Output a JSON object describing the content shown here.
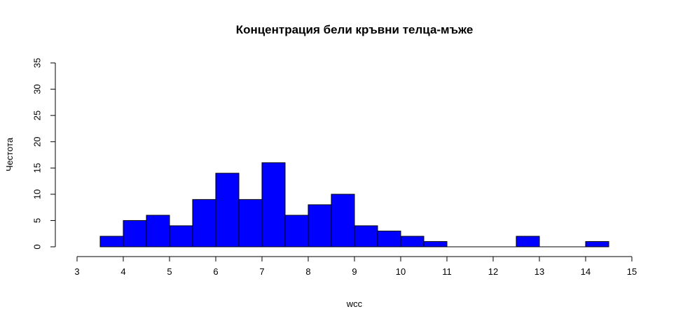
{
  "chart_data": {
    "type": "bar",
    "title": "Концентрация бели кръвни телца-мъже",
    "xlabel": "wcc",
    "ylabel": "Честота",
    "bin_width": 0.5,
    "bins": [
      {
        "start": 3.5,
        "end": 4.0,
        "count": 2
      },
      {
        "start": 4.0,
        "end": 4.5,
        "count": 5
      },
      {
        "start": 4.5,
        "end": 5.0,
        "count": 6
      },
      {
        "start": 5.0,
        "end": 5.5,
        "count": 4
      },
      {
        "start": 5.5,
        "end": 6.0,
        "count": 9
      },
      {
        "start": 6.0,
        "end": 6.5,
        "count": 14
      },
      {
        "start": 6.5,
        "end": 7.0,
        "count": 9
      },
      {
        "start": 7.0,
        "end": 7.5,
        "count": 16
      },
      {
        "start": 7.5,
        "end": 8.0,
        "count": 6
      },
      {
        "start": 8.0,
        "end": 8.5,
        "count": 8
      },
      {
        "start": 8.5,
        "end": 9.0,
        "count": 10
      },
      {
        "start": 9.0,
        "end": 9.5,
        "count": 4
      },
      {
        "start": 9.5,
        "end": 10.0,
        "count": 3
      },
      {
        "start": 10.0,
        "end": 10.5,
        "count": 2
      },
      {
        "start": 10.5,
        "end": 11.0,
        "count": 1
      },
      {
        "start": 11.0,
        "end": 11.5,
        "count": 0
      },
      {
        "start": 11.5,
        "end": 12.0,
        "count": 0
      },
      {
        "start": 12.0,
        "end": 12.5,
        "count": 0
      },
      {
        "start": 12.5,
        "end": 13.0,
        "count": 2
      },
      {
        "start": 13.0,
        "end": 13.5,
        "count": 0
      },
      {
        "start": 13.5,
        "end": 14.0,
        "count": 0
      },
      {
        "start": 14.0,
        "end": 14.5,
        "count": 1
      }
    ],
    "xlim": [
      3,
      15
    ],
    "ylim": [
      0,
      35
    ],
    "x_ticks": [
      "3",
      "4",
      "5",
      "6",
      "7",
      "8",
      "9",
      "10",
      "11",
      "12",
      "13",
      "14",
      "15"
    ],
    "y_ticks": [
      "0",
      "5",
      "10",
      "15",
      "20",
      "25",
      "30",
      "35"
    ],
    "bar_color": "#0000FF",
    "grid": false,
    "legend": "none"
  }
}
